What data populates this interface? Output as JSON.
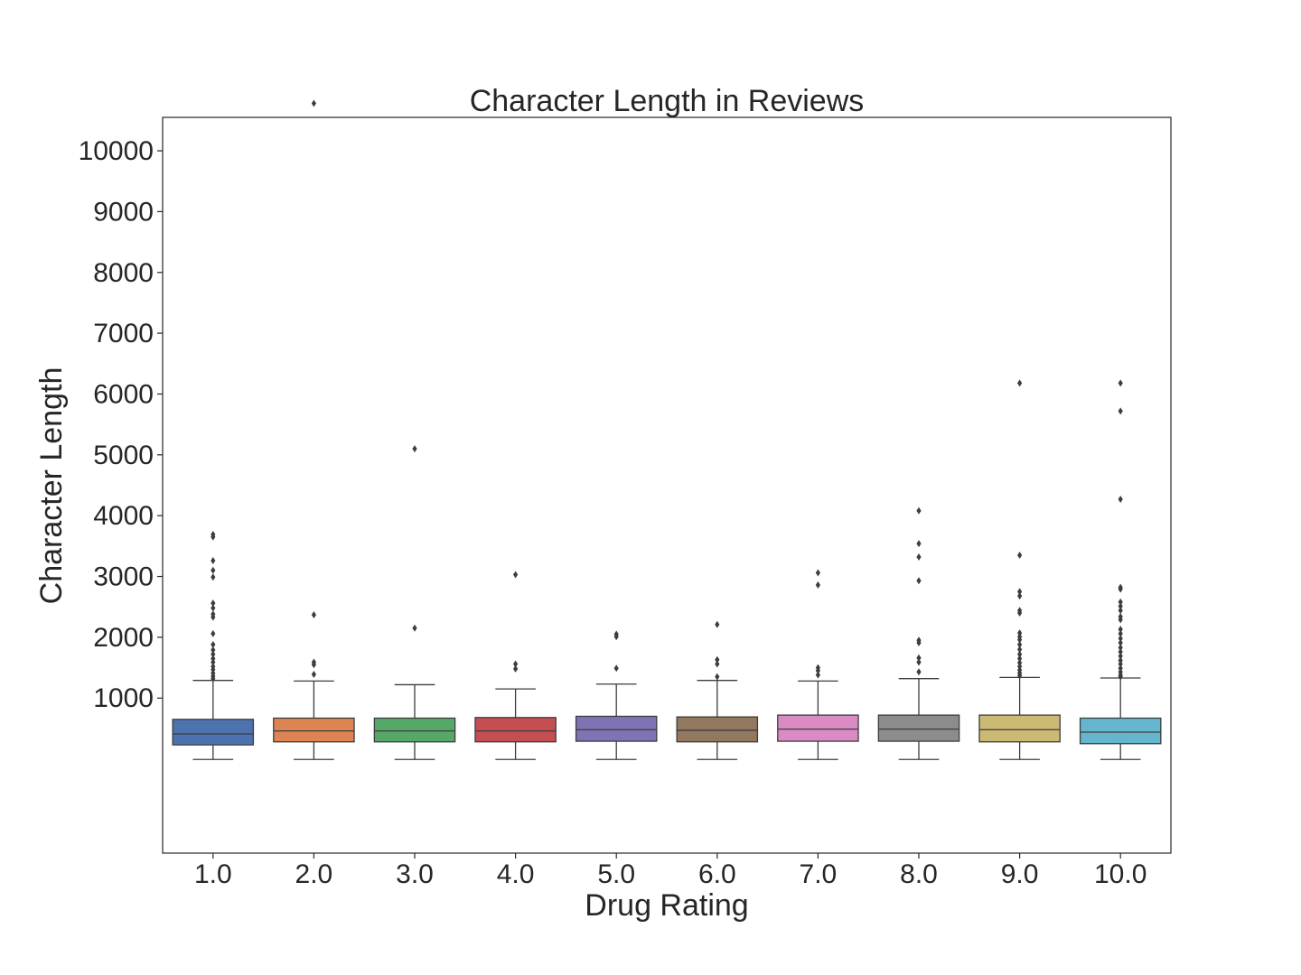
{
  "chart_data": {
    "type": "box",
    "title": "Character Length in Reviews",
    "xlabel": "Drug Rating",
    "ylabel": "Character Length",
    "ylim": [
      -1550,
      10550
    ],
    "yticks": [
      1000,
      2000,
      3000,
      4000,
      5000,
      6000,
      7000,
      8000,
      9000,
      10000
    ],
    "grid": false,
    "categories": [
      "1.0",
      "2.0",
      "3.0",
      "4.0",
      "5.0",
      "6.0",
      "7.0",
      "8.0",
      "9.0",
      "10.0"
    ],
    "boxes": [
      {
        "category": "1.0",
        "color": "#4c72b0",
        "whisker_low": -10,
        "q1": 230,
        "median": 410,
        "q3": 650,
        "whisker_high": 1290,
        "outliers": [
          3690,
          3650,
          3260,
          3100,
          2990,
          2560,
          2480,
          2380,
          2330,
          2060,
          1880,
          1790,
          1720,
          1650,
          1590,
          1520,
          1470,
          1410,
          1360,
          1320
        ]
      },
      {
        "category": "2.0",
        "color": "#dd8452",
        "whisker_low": -10,
        "q1": 280,
        "median": 460,
        "q3": 670,
        "whisker_high": 1280,
        "outliers": [
          10780,
          2370,
          1590,
          1550,
          1390
        ]
      },
      {
        "category": "3.0",
        "color": "#55a868",
        "whisker_low": -10,
        "q1": 280,
        "median": 460,
        "q3": 670,
        "whisker_high": 1220,
        "outliers": [
          5100,
          2150
        ]
      },
      {
        "category": "4.0",
        "color": "#c44e52",
        "whisker_low": -10,
        "q1": 280,
        "median": 460,
        "q3": 680,
        "whisker_high": 1150,
        "outliers": [
          3030,
          1560,
          1480
        ]
      },
      {
        "category": "5.0",
        "color": "#8172b3",
        "whisker_low": -10,
        "q1": 290,
        "median": 480,
        "q3": 700,
        "whisker_high": 1230,
        "outliers": [
          2050,
          2010,
          1490
        ]
      },
      {
        "category": "6.0",
        "color": "#937860",
        "whisker_low": -10,
        "q1": 280,
        "median": 470,
        "q3": 690,
        "whisker_high": 1290,
        "outliers": [
          2210,
          1630,
          1560,
          1350
        ]
      },
      {
        "category": "7.0",
        "color": "#da8bc3",
        "whisker_low": -10,
        "q1": 290,
        "median": 490,
        "q3": 720,
        "whisker_high": 1280,
        "outliers": [
          3060,
          2860,
          1500,
          1450,
          1380
        ]
      },
      {
        "category": "8.0",
        "color": "#8c8c8c",
        "whisker_low": -10,
        "q1": 290,
        "median": 490,
        "q3": 720,
        "whisker_high": 1320,
        "outliers": [
          4080,
          3540,
          3320,
          2930,
          1950,
          1910,
          1660,
          1590,
          1430
        ]
      },
      {
        "category": "9.0",
        "color": "#ccb974",
        "whisker_low": -10,
        "q1": 280,
        "median": 480,
        "q3": 720,
        "whisker_high": 1340,
        "outliers": [
          6180,
          3350,
          2750,
          2680,
          2440,
          2400,
          2070,
          2010,
          1960,
          1880,
          1800,
          1720,
          1650,
          1580,
          1520,
          1460,
          1410,
          1370
        ]
      },
      {
        "category": "10.0",
        "color": "#64b5cd",
        "whisker_low": -10,
        "q1": 250,
        "median": 440,
        "q3": 670,
        "whisker_high": 1330,
        "outliers": [
          6180,
          5720,
          4270,
          2820,
          2790,
          2580,
          2510,
          2440,
          2340,
          2290,
          2130,
          2060,
          1980,
          1910,
          1830,
          1760,
          1690,
          1620,
          1560,
          1490,
          1430,
          1380,
          1350
        ]
      }
    ]
  }
}
